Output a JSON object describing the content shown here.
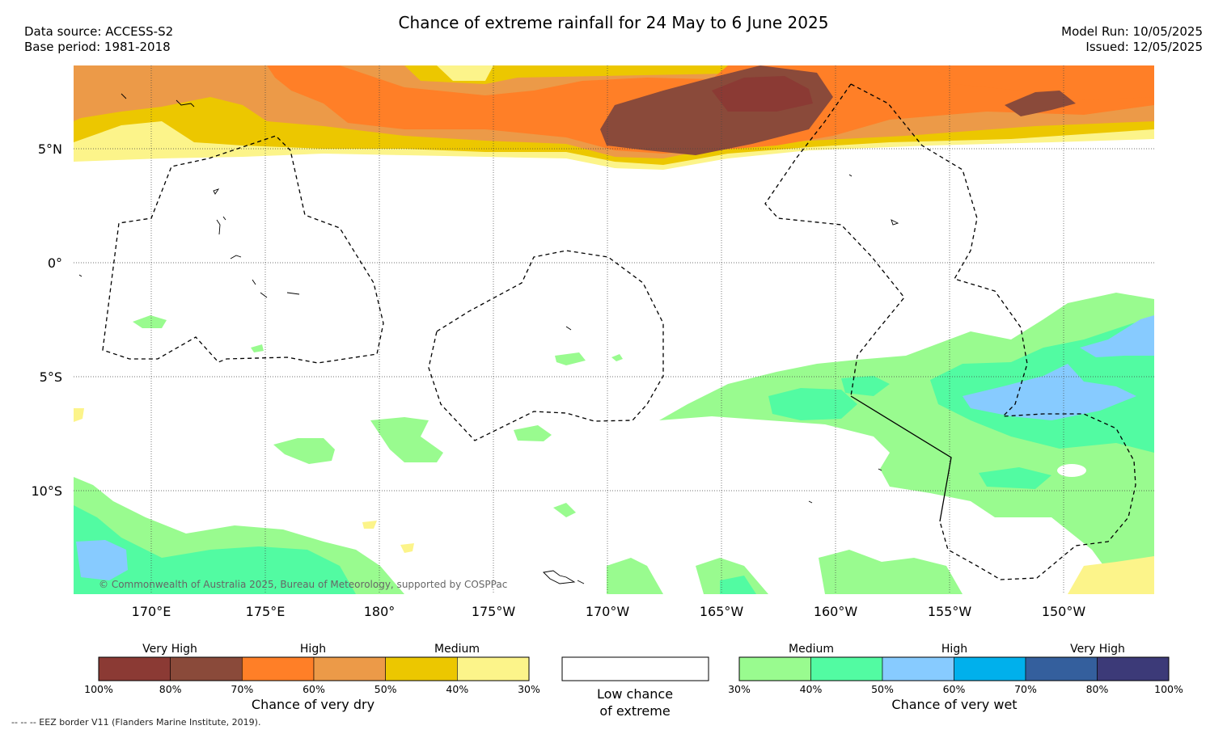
{
  "header": {
    "title": "Chance of extreme rainfall for 24 May to 6 June 2025",
    "data_source": "Data source: ACCESS-S2",
    "base_period": "Base period: 1981-2018",
    "model_run": "Model Run: 10/05/2025",
    "issued": "Issued: 12/05/2025"
  },
  "map": {
    "lat_labels": [
      "5°N",
      "0°",
      "5°S",
      "10°S"
    ],
    "lon_labels": [
      "170°E",
      "175°E",
      "180°",
      "175°W",
      "170°W",
      "165°W",
      "160°W",
      "155°W",
      "150°W"
    ],
    "copyright": "© Commonwealth of Australia 2025, Bureau of Meteorology, supported by COSPPac"
  },
  "legend": {
    "dry": {
      "categories": [
        "Very High",
        "High",
        "Medium"
      ],
      "ticks": [
        "100%",
        "80%",
        "70%",
        "60%",
        "50%",
        "40%",
        "30%"
      ],
      "colors": [
        "#8b3a34",
        "#8a4a3a",
        "#ff7f27",
        "#ec9a48",
        "#ecc700",
        "#fcf48a"
      ],
      "title": "Chance of very dry"
    },
    "neutral": {
      "line1": "Low chance",
      "line2": "of extreme"
    },
    "wet": {
      "categories": [
        "Medium",
        "High",
        "Very High"
      ],
      "ticks": [
        "30%",
        "40%",
        "50%",
        "60%",
        "70%",
        "80%",
        "100%"
      ],
      "colors": [
        "#99fb8f",
        "#52fba2",
        "#87cbff",
        "#00b0ec",
        "#345f9d",
        "#3c3a78"
      ],
      "title": "Chance of very wet"
    }
  },
  "footnote": "-- -- -- EEZ border V11 (Flanders Marine Institute, 2019)."
}
